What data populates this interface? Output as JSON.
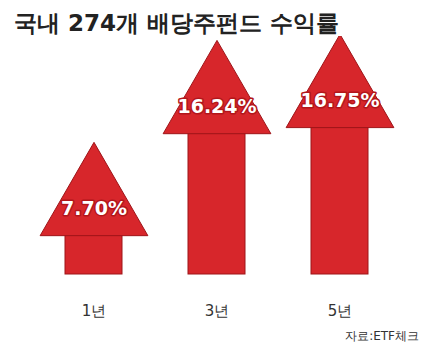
{
  "chart_data": {
    "type": "bar",
    "title": "국내 274개 배당주펀드 수익률",
    "categories": [
      "1년",
      "3년",
      "5년"
    ],
    "values": [
      7.7,
      16.24,
      16.75
    ],
    "value_labels": [
      "7.70%",
      "16.24%",
      "16.75%"
    ],
    "data_labels": true,
    "color": "#d7262b",
    "tick_labels": "x",
    "source": "자료:ETF체크"
  }
}
